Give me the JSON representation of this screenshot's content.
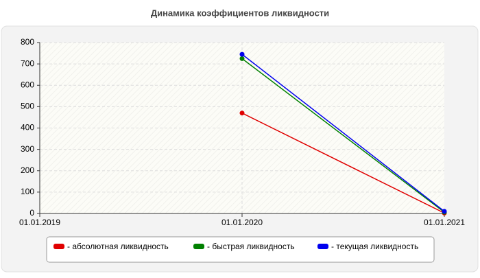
{
  "chart_data": {
    "type": "line",
    "title": "Динамика коэффициентов ликвидности",
    "categories": [
      "01.01.2019",
      "01.01.2020",
      "01.01.2021"
    ],
    "series": [
      {
        "name": "- абсолютная ликвидность",
        "color": "#e00000",
        "values": [
          null,
          470,
          2
        ]
      },
      {
        "name": "- быстрая ликвидность",
        "color": "#008000",
        "values": [
          null,
          725,
          6
        ]
      },
      {
        "name": "- текущая ликвидность",
        "color": "#0000ee",
        "values": [
          null,
          745,
          10
        ]
      }
    ],
    "ylim": [
      0,
      800
    ],
    "yticks": [
      0,
      100,
      200,
      300,
      400,
      500,
      600,
      700,
      800
    ],
    "grid": true
  }
}
